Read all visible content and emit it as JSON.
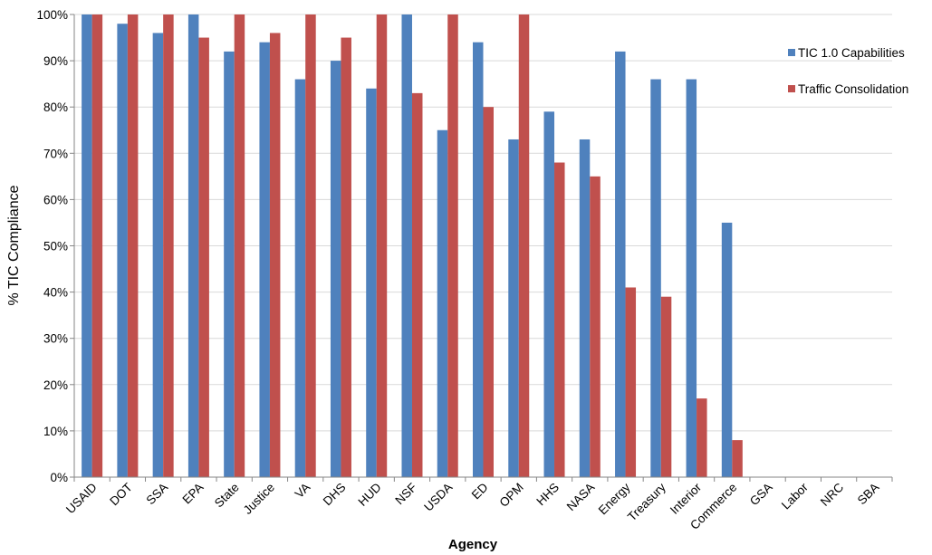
{
  "chart_data": {
    "type": "bar",
    "title": "",
    "xlabel": "Agency",
    "ylabel": "% TIC Compliance",
    "ylim": [
      0,
      100
    ],
    "yticks": [
      "0%",
      "10%",
      "20%",
      "30%",
      "40%",
      "50%",
      "60%",
      "70%",
      "80%",
      "90%",
      "100%"
    ],
    "grid": true,
    "legend_position": "right",
    "categories": [
      "USAID",
      "DOT",
      "SSA",
      "EPA",
      "State",
      "Justice",
      "VA",
      "DHS",
      "HUD",
      "NSF",
      "USDA",
      "ED",
      "OPM",
      "HHS",
      "NASA",
      "Energy",
      "Treasury",
      "Interior",
      "Commerce",
      "GSA",
      "Labor",
      "NRC",
      "SBA"
    ],
    "series": [
      {
        "name": "TIC 1.0 Capabilities",
        "color": "#4F81BD",
        "values": [
          100,
          98,
          96,
          100,
          92,
          94,
          86,
          90,
          84,
          100,
          75,
          94,
          73,
          79,
          73,
          92,
          86,
          86,
          55,
          0,
          0,
          0,
          0
        ]
      },
      {
        "name": "Traffic Consolidation",
        "color": "#C0504D",
        "values": [
          100,
          100,
          100,
          95,
          100,
          96,
          100,
          95,
          100,
          83,
          100,
          80,
          100,
          68,
          65,
          41,
          39,
          17,
          8,
          0,
          0,
          0,
          0
        ]
      }
    ]
  }
}
